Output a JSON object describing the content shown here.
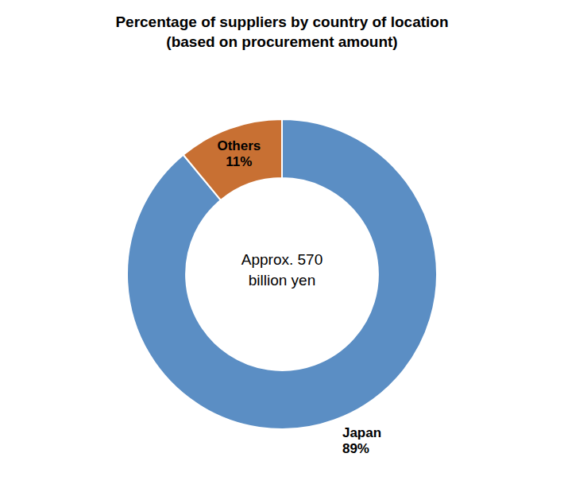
{
  "chart_data": {
    "type": "donut",
    "title": "Percentage of suppliers by country of location\n(based on procurement amount)",
    "categories": [
      "Japan",
      "Others"
    ],
    "values": [
      89,
      11
    ],
    "value_labels": [
      "89%",
      "11%"
    ],
    "colors": [
      "#5b8ec4",
      "#c87033"
    ],
    "data_labels": true,
    "annotations": [
      "Approx. 570",
      "billion yen"
    ]
  }
}
